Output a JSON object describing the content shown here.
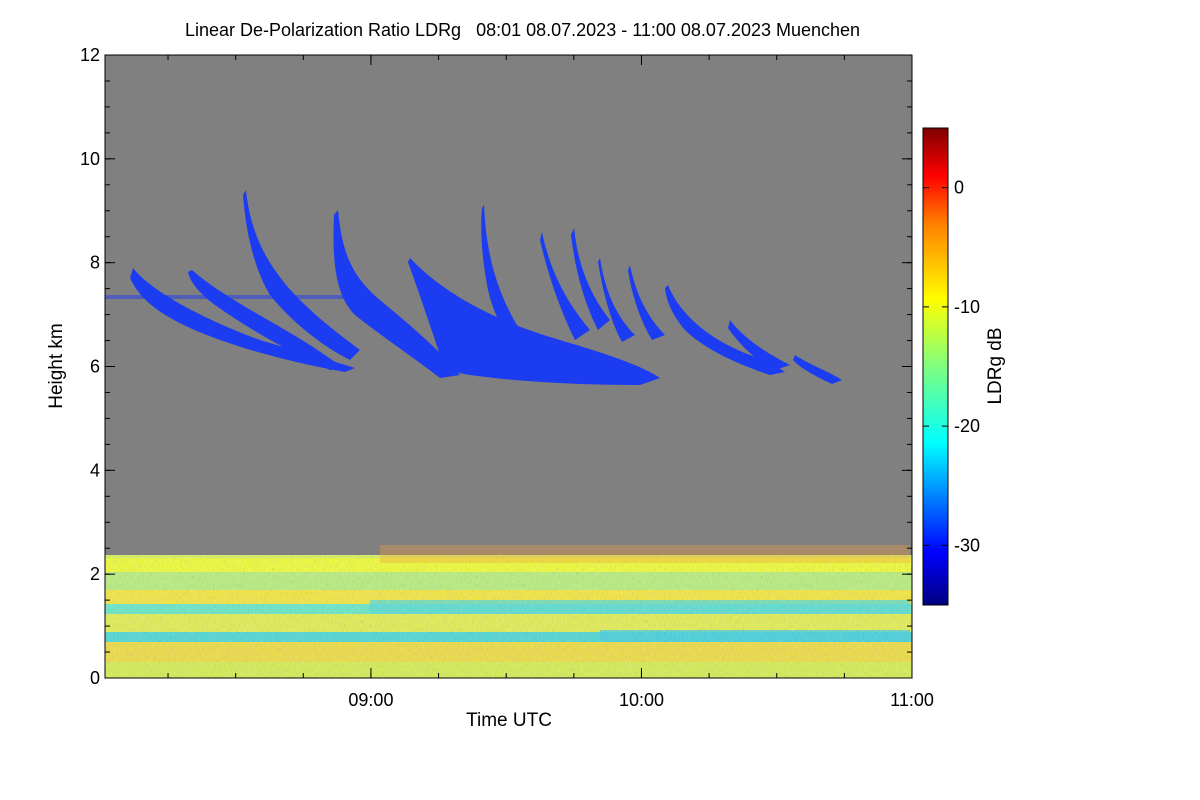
{
  "chart_data": {
    "type": "heatmap",
    "title": "Linear De-Polarization Ratio LDRg   08:01 08.07.2023 - 11:00 08.07.2023 Muenchen",
    "xlabel": "Time UTC",
    "ylabel": "Height km",
    "xlim_hours_utc": [
      8.017,
      11.0
    ],
    "ylim_km": [
      0,
      12
    ],
    "x_ticks": [
      {
        "value": 9.0,
        "label": "09:00"
      },
      {
        "value": 10.0,
        "label": "10:00"
      },
      {
        "value": 11.0,
        "label": "11:00"
      }
    ],
    "y_ticks": [
      {
        "value": 0,
        "label": "0"
      },
      {
        "value": 2,
        "label": "2"
      },
      {
        "value": 4,
        "label": "4"
      },
      {
        "value": 6,
        "label": "6"
      },
      {
        "value": 8,
        "label": "8"
      },
      {
        "value": 10,
        "label": "10"
      },
      {
        "value": 12,
        "label": "12"
      }
    ],
    "colorbar": {
      "label": "LDRg dB",
      "range_db": [
        -35,
        5
      ],
      "colormap": "jet",
      "ticks": [
        {
          "value": 0,
          "label": "0"
        },
        {
          "value": -10,
          "label": "-10"
        },
        {
          "value": -20,
          "label": "-20"
        },
        {
          "value": -30,
          "label": "-30"
        }
      ]
    },
    "background_color": "#808080",
    "features": [
      {
        "name": "ice-cloud-fallstreaks",
        "time_utc": [
          8.1,
          10.75
        ],
        "height_km": [
          5.6,
          9.4
        ],
        "ldr_db": -31
      },
      {
        "name": "boundary-layer-aerosol",
        "time_utc": [
          8.017,
          11.0
        ],
        "height_km": [
          0,
          2.4
        ],
        "ldr_db_range": [
          -22,
          -5
        ]
      }
    ]
  }
}
